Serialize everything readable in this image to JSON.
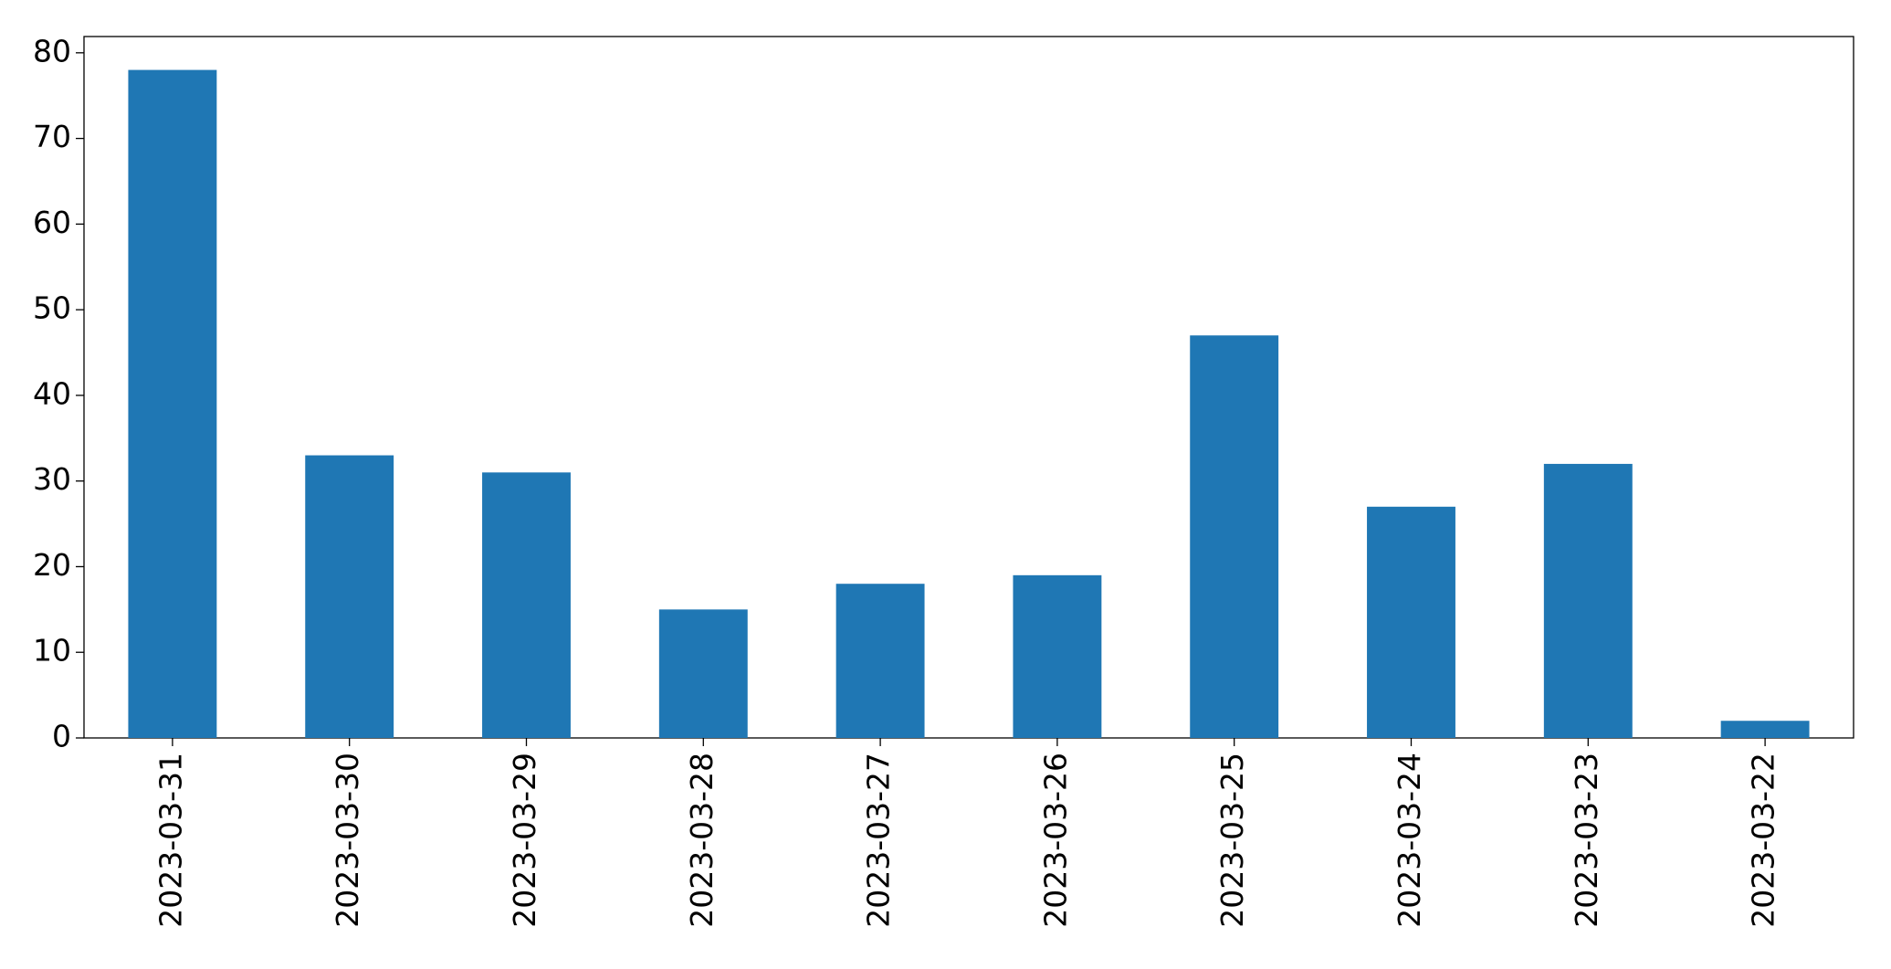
{
  "chart_data": {
    "type": "bar",
    "categories": [
      "2023-03-31",
      "2023-03-30",
      "2023-03-29",
      "2023-03-28",
      "2023-03-27",
      "2023-03-26",
      "2023-03-25",
      "2023-03-24",
      "2023-03-23",
      "2023-03-22"
    ],
    "values": [
      78,
      33,
      31,
      15,
      18,
      19,
      47,
      27,
      32,
      2
    ],
    "color": "#1f77b4",
    "ylim": [
      0,
      81.9
    ],
    "yticks": [
      0,
      10,
      20,
      30,
      40,
      50,
      60,
      70,
      80
    ],
    "grid": false
  }
}
